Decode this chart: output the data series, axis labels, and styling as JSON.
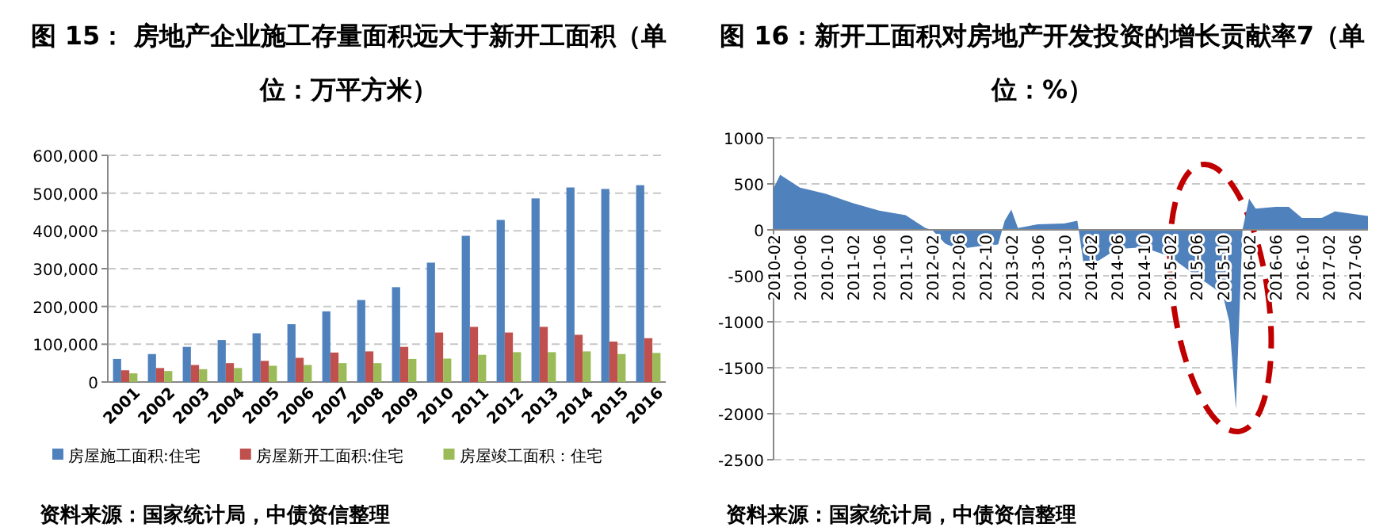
{
  "chart_data": [
    {
      "type": "bar",
      "title": "图 15： 房地产企业施工存量面积远大于新开工面积（单位：万平方米）",
      "annotations": [
        "资料来源：国家统计局，中债资信整理"
      ],
      "categories": [
        "2001",
        "2002",
        "2003",
        "2004",
        "2005",
        "2006",
        "2007",
        "2008",
        "2009",
        "2010",
        "2011",
        "2012",
        "2013",
        "2014",
        "2015",
        "2016"
      ],
      "series": [
        {
          "name": "房屋施工面积:住宅",
          "color": "#4f81bd",
          "values": [
            61000,
            74000,
            93000,
            111000,
            129000,
            153000,
            187000,
            217000,
            251000,
            316000,
            387000,
            429000,
            486000,
            515000,
            511000,
            521000
          ]
        },
        {
          "name": "房屋新开工面积:住宅",
          "color": "#c0504d",
          "values": [
            31000,
            37000,
            45000,
            50000,
            56000,
            64000,
            78000,
            81000,
            93000,
            131000,
            146000,
            131000,
            146000,
            125000,
            107000,
            116000
          ]
        },
        {
          "name": "房屋竣工面积：住宅",
          "color": "#9bbb59",
          "values": [
            23000,
            29000,
            34000,
            37000,
            43000,
            45000,
            50000,
            50000,
            61000,
            62000,
            72000,
            79000,
            79000,
            81000,
            74000,
            77000
          ]
        }
      ],
      "ylim": [
        0,
        600000
      ],
      "yticks": [
        {
          "value": 0,
          "label": "0"
        },
        {
          "value": 100000,
          "label": "100,000"
        },
        {
          "value": 200000,
          "label": "200,000"
        },
        {
          "value": 300000,
          "label": "300,000"
        },
        {
          "value": 400000,
          "label": "400,000"
        },
        {
          "value": 500000,
          "label": "500,000"
        },
        {
          "value": 600000,
          "label": "600,000"
        }
      ],
      "grid": "y",
      "legend": "bottom"
    },
    {
      "type": "area",
      "title": "图 16：新开工面积对房地产开发投资的增长贡献率7（单位：%）",
      "annotations": [
        "资料来源：国家统计局，中债资信整理"
      ],
      "x": [
        "2010-02",
        "2010-03",
        "2010-06",
        "2010-10",
        "2011-02",
        "2011-06",
        "2011-10",
        "2012-01",
        "2012-02",
        "2012-04",
        "2012-06",
        "2012-10",
        "2012-12",
        "2013-01",
        "2013-02",
        "2013-03",
        "2013-06",
        "2013-10",
        "2013-12",
        "2014-01",
        "2014-02",
        "2014-06",
        "2014-10",
        "2015-02",
        "2015-06",
        "2015-10",
        "2015-11",
        "2015-12",
        "2016-01",
        "2016-02",
        "2016-03",
        "2016-06",
        "2016-08",
        "2016-10",
        "2017-01",
        "2017-03",
        "2017-06",
        "2017-08"
      ],
      "series": [
        {
          "color": "#4f81bd",
          "values": [
            450,
            600,
            460,
            390,
            290,
            210,
            160,
            20,
            0,
            -150,
            -210,
            -170,
            -160,
            100,
            220,
            20,
            60,
            70,
            100,
            -400,
            -390,
            -210,
            -190,
            -290,
            -500,
            -700,
            -1000,
            -1950,
            0,
            340,
            230,
            250,
            250,
            130,
            130,
            200,
            170,
            150
          ]
        }
      ],
      "xlim": [
        "2010-02",
        "2017-08"
      ],
      "xticks": [
        "2010-02",
        "2010-06",
        "2010-10",
        "2011-02",
        "2011-06",
        "2011-10",
        "2012-02",
        "2012-06",
        "2012-10",
        "2013-02",
        "2013-06",
        "2013-10",
        "2014-02",
        "2014-06",
        "2014-10",
        "2015-02",
        "2015-06",
        "2015-10",
        "2016-02",
        "2016-06",
        "2016-10",
        "2017-02",
        "2017-06"
      ],
      "ylim": [
        -2500,
        1000
      ],
      "yticks": [
        -2500,
        -2000,
        -1500,
        -1000,
        -500,
        0,
        500,
        1000
      ],
      "grid": "y"
    }
  ]
}
